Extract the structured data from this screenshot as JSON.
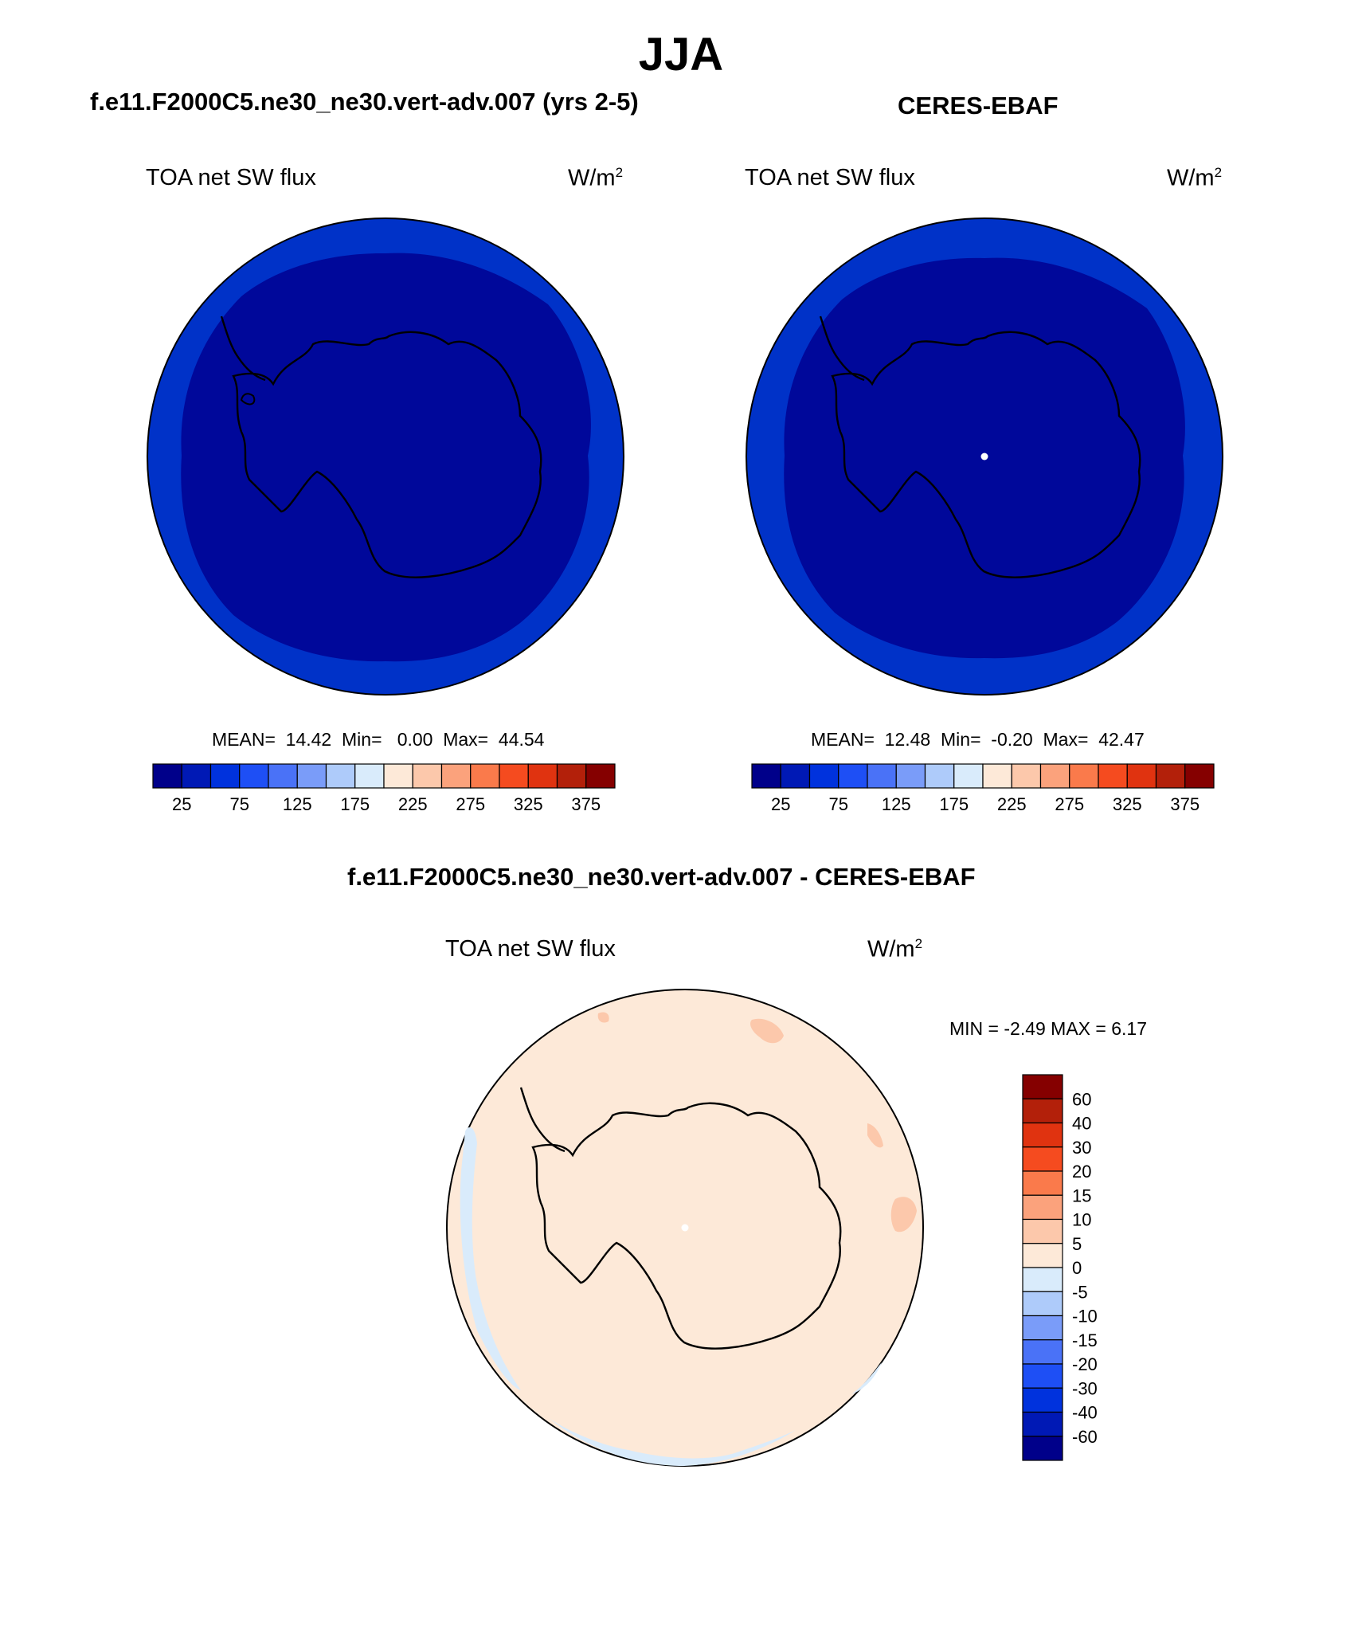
{
  "title": "JJA",
  "panels": {
    "model": {
      "case": "f.e11.F2000C5.ne30_ne30.vert-adv.007 (yrs 2-5)",
      "variable": "TOA net SW flux",
      "unit_base": "W/m",
      "unit_exp": "2",
      "stats": {
        "mean_label": "MEAN=",
        "mean": "14.42",
        "min_label": "Min=",
        "min": "0.00",
        "max_label": "Max=",
        "max": "44.54"
      }
    },
    "obs": {
      "case": "CERES-EBAF",
      "variable": "TOA net SW flux",
      "unit_base": "W/m",
      "unit_exp": "2",
      "stats": {
        "mean_label": "MEAN=",
        "mean": "12.48",
        "min_label": "Min=",
        "min": "-0.20",
        "max_label": "Max=",
        "max": "42.47"
      }
    },
    "diff": {
      "case": "f.e11.F2000C5.ne30_ne30.vert-adv.007 - CERES-EBAF",
      "variable": "TOA net SW flux",
      "unit_base": "W/m",
      "unit_exp": "2",
      "minmax": "MIN =  -2.49 MAX =   6.17"
    }
  },
  "colorbar_abs": {
    "colors": [
      "#00008a",
      "#0019b5",
      "#0032dd",
      "#1e4ff5",
      "#4a72f7",
      "#7a9cf9",
      "#aecbfa",
      "#d9ebfb",
      "#fde9d8",
      "#fcc8ab",
      "#fba27c",
      "#fa7a4b",
      "#f54b1f",
      "#e03310",
      "#b3200a",
      "#850000"
    ],
    "tick_labels": [
      "25",
      "75",
      "125",
      "175",
      "225",
      "275",
      "325",
      "375"
    ]
  },
  "colorbar_diff": {
    "colors": [
      "#850000",
      "#b3200a",
      "#e03310",
      "#f54b1f",
      "#fa7a4b",
      "#fba27c",
      "#fcc8ab",
      "#fde9d8",
      "#d9ebfb",
      "#aecbfa",
      "#7a9cf9",
      "#4a72f7",
      "#1e4ff5",
      "#0032dd",
      "#0019b5",
      "#00008a"
    ],
    "tick_labels": [
      "60",
      "40",
      "30",
      "20",
      "15",
      "10",
      "5",
      "0",
      "-5",
      "-10",
      "-15",
      "-20",
      "-30",
      "-40",
      "-60"
    ]
  },
  "map_colors": {
    "abs_outer": "#0032c8",
    "abs_inner": "#00089a",
    "diff_fill": "#fde9d8",
    "diff_neg": "#d9ebfb",
    "diff_pos": "#fcc8ab"
  }
}
